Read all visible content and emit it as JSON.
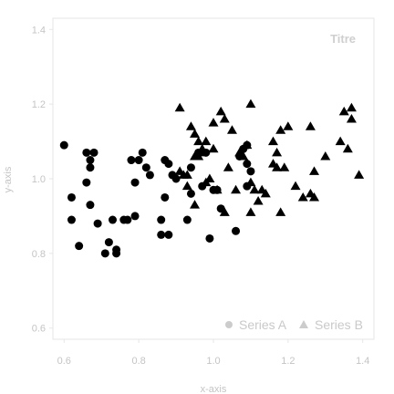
{
  "chart_data": {
    "type": "scatter",
    "title": "Titre",
    "xlabel": "x-axis",
    "ylabel": "y-axis",
    "xlim": [
      0.57,
      1.43
    ],
    "ylim": [
      0.57,
      1.43
    ],
    "xticks": [
      0.6,
      0.8,
      1.0,
      1.2,
      1.4
    ],
    "xtick_labels": [
      "0.6",
      "0.8",
      "1.0",
      "1.2",
      "1.4"
    ],
    "yticks": [
      0.6,
      0.8,
      1.0,
      1.2,
      1.4
    ],
    "ytick_labels": [
      "0.6",
      "0.8",
      "1.0",
      "1.2",
      "1.4"
    ],
    "grid": false,
    "legend_position": "bottom-right",
    "colors": {
      "marker": "#000000",
      "frame": "#e6e6e6",
      "text": "#c4c4c4",
      "legend_marker": "#cccccc"
    },
    "series": [
      {
        "name": "Series A",
        "marker": "circle",
        "points": [
          [
            0.6,
            1.09
          ],
          [
            0.62,
            0.95
          ],
          [
            0.62,
            0.89
          ],
          [
            0.64,
            0.82
          ],
          [
            0.66,
            0.99
          ],
          [
            0.66,
            1.07
          ],
          [
            0.67,
            1.05
          ],
          [
            0.67,
            1.03
          ],
          [
            0.67,
            0.93
          ],
          [
            0.68,
            1.07
          ],
          [
            0.69,
            0.88
          ],
          [
            0.71,
            0.8
          ],
          [
            0.72,
            0.83
          ],
          [
            0.73,
            0.89
          ],
          [
            0.74,
            0.81
          ],
          [
            0.74,
            0.8
          ],
          [
            0.76,
            0.89
          ],
          [
            0.77,
            0.89
          ],
          [
            0.78,
            1.05
          ],
          [
            0.79,
            0.9
          ],
          [
            0.79,
            0.99
          ],
          [
            0.8,
            1.05
          ],
          [
            0.81,
            1.07
          ],
          [
            0.82,
            1.03
          ],
          [
            0.83,
            1.01
          ],
          [
            0.86,
            0.85
          ],
          [
            0.86,
            0.89
          ],
          [
            0.87,
            0.95
          ],
          [
            0.87,
            1.05
          ],
          [
            0.88,
            1.04
          ],
          [
            0.88,
            0.85
          ],
          [
            0.89,
            1.01
          ],
          [
            0.9,
            1.0
          ],
          [
            0.93,
            0.89
          ],
          [
            0.94,
            0.96
          ],
          [
            0.94,
            1.03
          ],
          [
            0.96,
            1.07
          ],
          [
            0.97,
            0.98
          ],
          [
            0.98,
            1.07
          ],
          [
            0.99,
            0.84
          ],
          [
            1.0,
            0.97
          ],
          [
            1.01,
            0.97
          ],
          [
            1.02,
            0.92
          ],
          [
            1.06,
            0.86
          ],
          [
            1.07,
            1.06
          ],
          [
            1.08,
            1.08
          ],
          [
            1.09,
            1.09
          ],
          [
            1.09,
            1.04
          ],
          [
            1.09,
            0.98
          ],
          [
            1.1,
            1.02
          ]
        ]
      },
      {
        "name": "Series B",
        "marker": "triangle",
        "points": [
          [
            0.91,
            1.19
          ],
          [
            0.91,
            1.02
          ],
          [
            0.92,
            1.01
          ],
          [
            0.93,
            0.98
          ],
          [
            0.93,
            1.01
          ],
          [
            0.94,
            1.14
          ],
          [
            0.95,
            0.93
          ],
          [
            0.95,
            1.06
          ],
          [
            0.95,
            1.12
          ],
          [
            0.96,
            1.1
          ],
          [
            0.96,
            1.06
          ],
          [
            0.97,
            1.08
          ],
          [
            0.97,
            1.07
          ],
          [
            0.98,
            1.1
          ],
          [
            0.98,
            0.99
          ],
          [
            0.99,
            1.0
          ],
          [
            1.0,
            1.08
          ],
          [
            1.0,
            1.15
          ],
          [
            1.01,
            0.97
          ],
          [
            1.02,
            1.18
          ],
          [
            1.03,
            1.16
          ],
          [
            1.03,
            0.91
          ],
          [
            1.04,
            1.03
          ],
          [
            1.05,
            1.13
          ],
          [
            1.06,
            0.97
          ],
          [
            1.07,
            1.07
          ],
          [
            1.08,
            1.06
          ],
          [
            1.09,
            1.09
          ],
          [
            1.1,
            1.2
          ],
          [
            1.1,
            0.91
          ],
          [
            1.1,
            0.99
          ],
          [
            1.11,
            0.97
          ],
          [
            1.12,
            0.94
          ],
          [
            1.13,
            0.97
          ],
          [
            1.14,
            0.96
          ],
          [
            1.16,
            1.1
          ],
          [
            1.16,
            1.04
          ],
          [
            1.17,
            1.07
          ],
          [
            1.17,
            1.03
          ],
          [
            1.18,
            1.13
          ],
          [
            1.18,
            0.91
          ],
          [
            1.19,
            1.03
          ],
          [
            1.2,
            1.14
          ],
          [
            1.22,
            0.98
          ],
          [
            1.24,
            0.95
          ],
          [
            1.26,
            0.96
          ],
          [
            1.26,
            1.14
          ],
          [
            1.27,
            1.02
          ],
          [
            1.27,
            0.95
          ],
          [
            1.3,
            1.06
          ],
          [
            1.34,
            1.1
          ],
          [
            1.35,
            1.18
          ],
          [
            1.36,
            1.08
          ],
          [
            1.37,
            1.16
          ],
          [
            1.37,
            1.19
          ],
          [
            1.39,
            1.01
          ]
        ]
      }
    ]
  }
}
